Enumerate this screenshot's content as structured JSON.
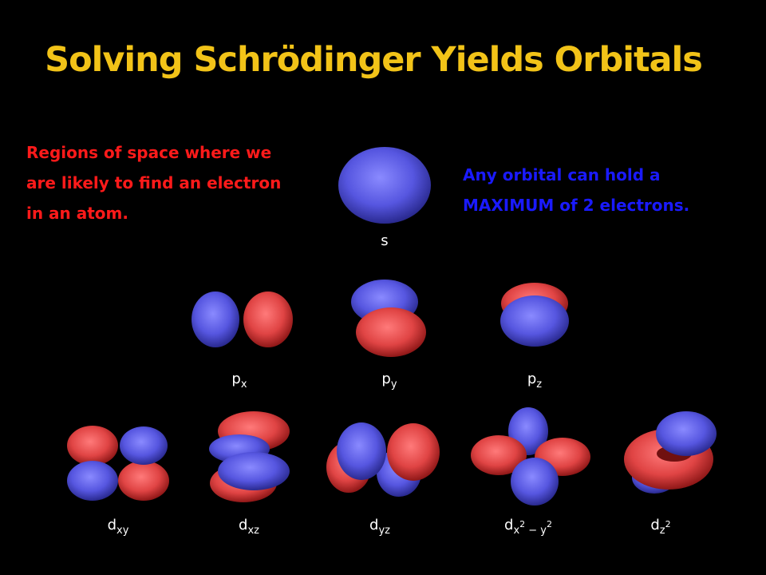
{
  "header": {
    "title": "Solving Schrödinger Yields Orbitals"
  },
  "notes": {
    "left": "Regions of space where we are likely to find an electron in an atom.",
    "right": "Any orbital can hold a MAXIMUM of 2 electrons."
  },
  "orbitals": [
    {
      "label": [
        {
          "text": "s",
          "style": "base"
        }
      ]
    },
    {
      "label": [
        {
          "text": "p",
          "style": "base"
        },
        {
          "text": "x",
          "style": "sub"
        }
      ]
    },
    {
      "label": [
        {
          "text": "p",
          "style": "base"
        },
        {
          "text": "y",
          "style": "sub"
        }
      ]
    },
    {
      "label": [
        {
          "text": "p",
          "style": "base"
        },
        {
          "text": "z",
          "style": "sub"
        }
      ]
    },
    {
      "label": [
        {
          "text": "d",
          "style": "base"
        },
        {
          "text": "xy",
          "style": "sub"
        }
      ]
    },
    {
      "label": [
        {
          "text": "d",
          "style": "base"
        },
        {
          "text": "xz",
          "style": "sub"
        }
      ]
    },
    {
      "label": [
        {
          "text": "d",
          "style": "base"
        },
        {
          "text": "yz",
          "style": "sub"
        }
      ]
    },
    {
      "label": [
        {
          "text": "d",
          "style": "base"
        },
        {
          "text": "x",
          "style": "sub"
        },
        {
          "text": "2",
          "style": "subsup"
        },
        {
          "text": " − y",
          "style": "sub"
        },
        {
          "text": "2",
          "style": "subsup"
        }
      ]
    },
    {
      "label": [
        {
          "text": "d",
          "style": "base"
        },
        {
          "text": "z",
          "style": "sub"
        },
        {
          "text": "2",
          "style": "subsup"
        }
      ]
    }
  ]
}
